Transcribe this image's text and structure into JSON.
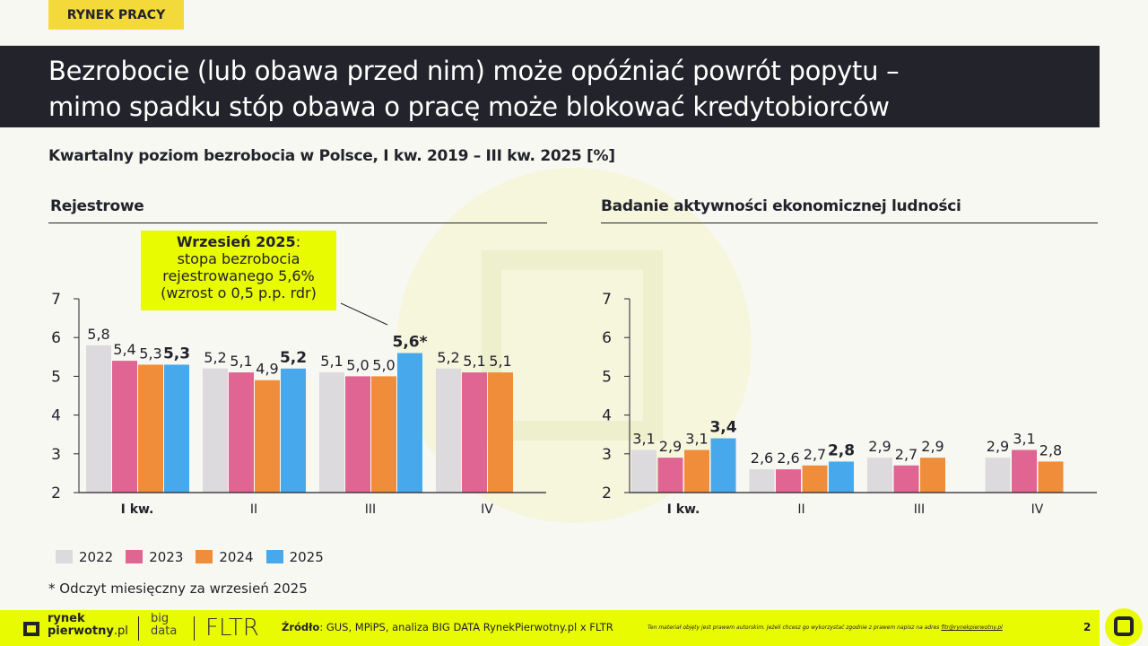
{
  "tag": "RYNEK PRACY",
  "title": [
    "Bezrobocie (lub obawa przed nim) może opóźniać powrót popytu –",
    "mimo spadku stóp obawa o pracę może blokować kredytobiorców"
  ],
  "subtitle": "Kwartalny poziom bezrobocia w Polsce, I kw. 2019 – III kw. 2025 [%]",
  "callout": {
    "bold": "Wrzesień 2025",
    "rest": ":",
    "line2": "stopa bezrobocia",
    "line3": "rejestrowanego 5,6%",
    "line4": "(wzrost o 0,5 p.p. rdr)"
  },
  "note": "* Odczyt miesięczny za wrzesień 2025",
  "colors": {
    "2022": "#dcdadd",
    "2023": "#e06592",
    "2024": "#f08d3a",
    "2025": "#47a9ec",
    "accent": "#e9fb00",
    "dark": "#22232b"
  },
  "chart_data": [
    {
      "type": "bar",
      "title": "Rejestrowe",
      "categories": [
        "I kw.",
        "II",
        "III",
        "IV"
      ],
      "ylim": [
        2,
        7
      ],
      "yticks": [
        2,
        3,
        4,
        5,
        6,
        7
      ],
      "series": [
        {
          "name": "2022",
          "values": [
            5.8,
            5.2,
            5.1,
            5.2
          ],
          "labels": [
            "5,8",
            "5,2",
            "5,1",
            "5,2"
          ]
        },
        {
          "name": "2023",
          "values": [
            5.4,
            5.1,
            5.0,
            5.1
          ],
          "labels": [
            "5,4",
            "5,1",
            "5,0",
            "5,1"
          ]
        },
        {
          "name": "2024",
          "values": [
            5.3,
            4.9,
            5.0,
            5.1
          ],
          "labels": [
            "5,3",
            "4,9",
            "5,0",
            "5,1"
          ]
        },
        {
          "name": "2025",
          "values": [
            5.3,
            5.2,
            5.6,
            null
          ],
          "labels": [
            "5,3",
            "5,2",
            "5,6*",
            ""
          ]
        }
      ]
    },
    {
      "type": "bar",
      "title": "Badanie aktywności ekonomicznej ludności",
      "categories": [
        "I kw.",
        "II",
        "III",
        "IV"
      ],
      "ylim": [
        2,
        7
      ],
      "yticks": [
        2,
        3,
        4,
        5,
        6,
        7
      ],
      "series": [
        {
          "name": "2022",
          "values": [
            3.1,
            2.6,
            2.9,
            2.9
          ],
          "labels": [
            "3,1",
            "2,6",
            "2,9",
            "2,9"
          ]
        },
        {
          "name": "2023",
          "values": [
            2.9,
            2.6,
            2.7,
            3.1
          ],
          "labels": [
            "2,9",
            "2,6",
            "2,7",
            "3,1"
          ]
        },
        {
          "name": "2024",
          "values": [
            3.1,
            2.7,
            2.9,
            2.8
          ],
          "labels": [
            "3,1",
            "2,7",
            "2,9",
            "2,8"
          ]
        },
        {
          "name": "2025",
          "values": [
            3.4,
            2.8,
            null,
            null
          ],
          "labels": [
            "3,4",
            "2,8",
            "",
            ""
          ]
        }
      ]
    }
  ],
  "legend": [
    "2022",
    "2023",
    "2024",
    "2025"
  ],
  "footer": {
    "logo1": "rynek",
    "logo2": "pierwotny",
    "logo3": ".pl",
    "big1": "big",
    "big2": "data",
    "fltr": "FLTR",
    "source_label": "Źródło",
    "source": ": GUS, MPiPS, analiza BIG DATA RynekPierwotny.pl x FLTR",
    "copyright": "Ten materiał objęty jest prawem autorskim. Jeżeli chcesz go wykorzystać zgodnie z prawem napisz na adres ",
    "email": "fltr@rynekpierwotny.pl",
    "page": "2"
  }
}
